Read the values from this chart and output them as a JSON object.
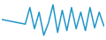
{
  "y_values": [
    22,
    21,
    20,
    19,
    18,
    17,
    35,
    12,
    30,
    5,
    18,
    38,
    8,
    32,
    10,
    35,
    12,
    30,
    10,
    35,
    13,
    30,
    15
  ],
  "line_color": "#2196c8",
  "background_color": "#ffffff",
  "linewidth": 1.1
}
